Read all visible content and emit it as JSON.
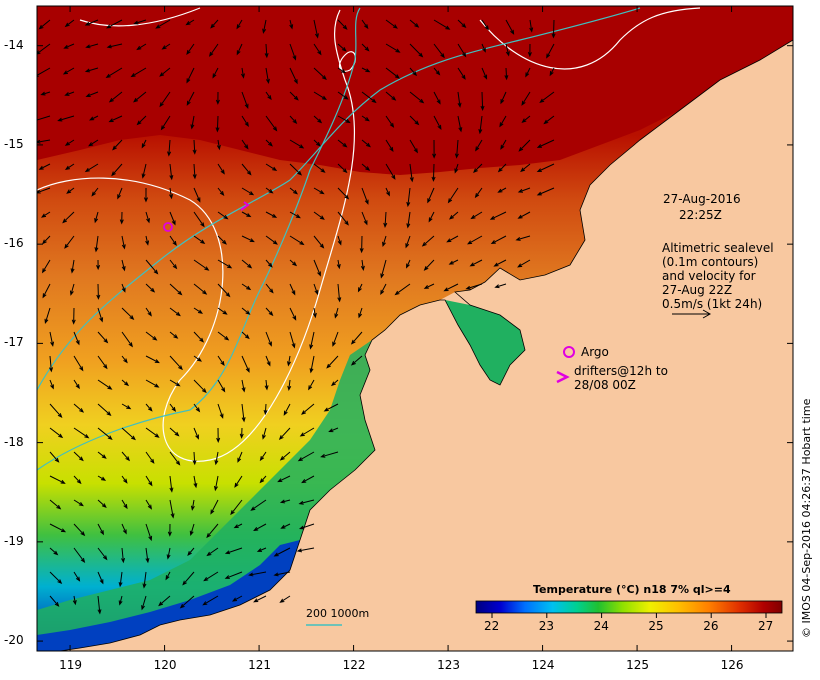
{
  "map": {
    "lon_range": [
      118.65,
      126.65
    ],
    "lat_range": [
      -20.1,
      -13.6
    ],
    "lon_ticks": [
      119,
      120,
      121,
      122,
      123,
      124,
      125,
      126
    ],
    "lat_ticks": [
      -14,
      -15,
      -16,
      -17,
      -18,
      -19,
      -20
    ]
  },
  "annotations": {
    "date": "27-Aug-2016",
    "time": "22:25Z",
    "sealevel": [
      "Altimetric sealevel",
      "(0.1m contours)",
      "and velocity for",
      "27-Aug 22Z",
      "0.5m/s (1kt 24h)"
    ],
    "argo_label": "Argo",
    "drifters_line1": "drifters@12h to",
    "drifters_line2": "28/08 00Z",
    "isobath": "200  1000m"
  },
  "legend": {
    "title": "Temperature (°C) n18 7% ql>=4",
    "ticks": [
      "22",
      "23",
      "24",
      "25",
      "26",
      "27"
    ],
    "colors": [
      "#000080",
      "#0000d0",
      "#0060ff",
      "#00b0ff",
      "#00e0c0",
      "#00d060",
      "#40c000",
      "#a0e000",
      "#f0f000",
      "#ffc000",
      "#ff8000",
      "#ff4000",
      "#d00000",
      "#a00000",
      "#800000"
    ]
  },
  "credit": "© IMOS 04-Sep-2016 04:26:37 Hobart time",
  "colors": {
    "land": "#f8c8a0",
    "warm": "#a80000",
    "contour": "#ffffff",
    "isobath": "#40c0c0",
    "argo": "#e000e0"
  }
}
